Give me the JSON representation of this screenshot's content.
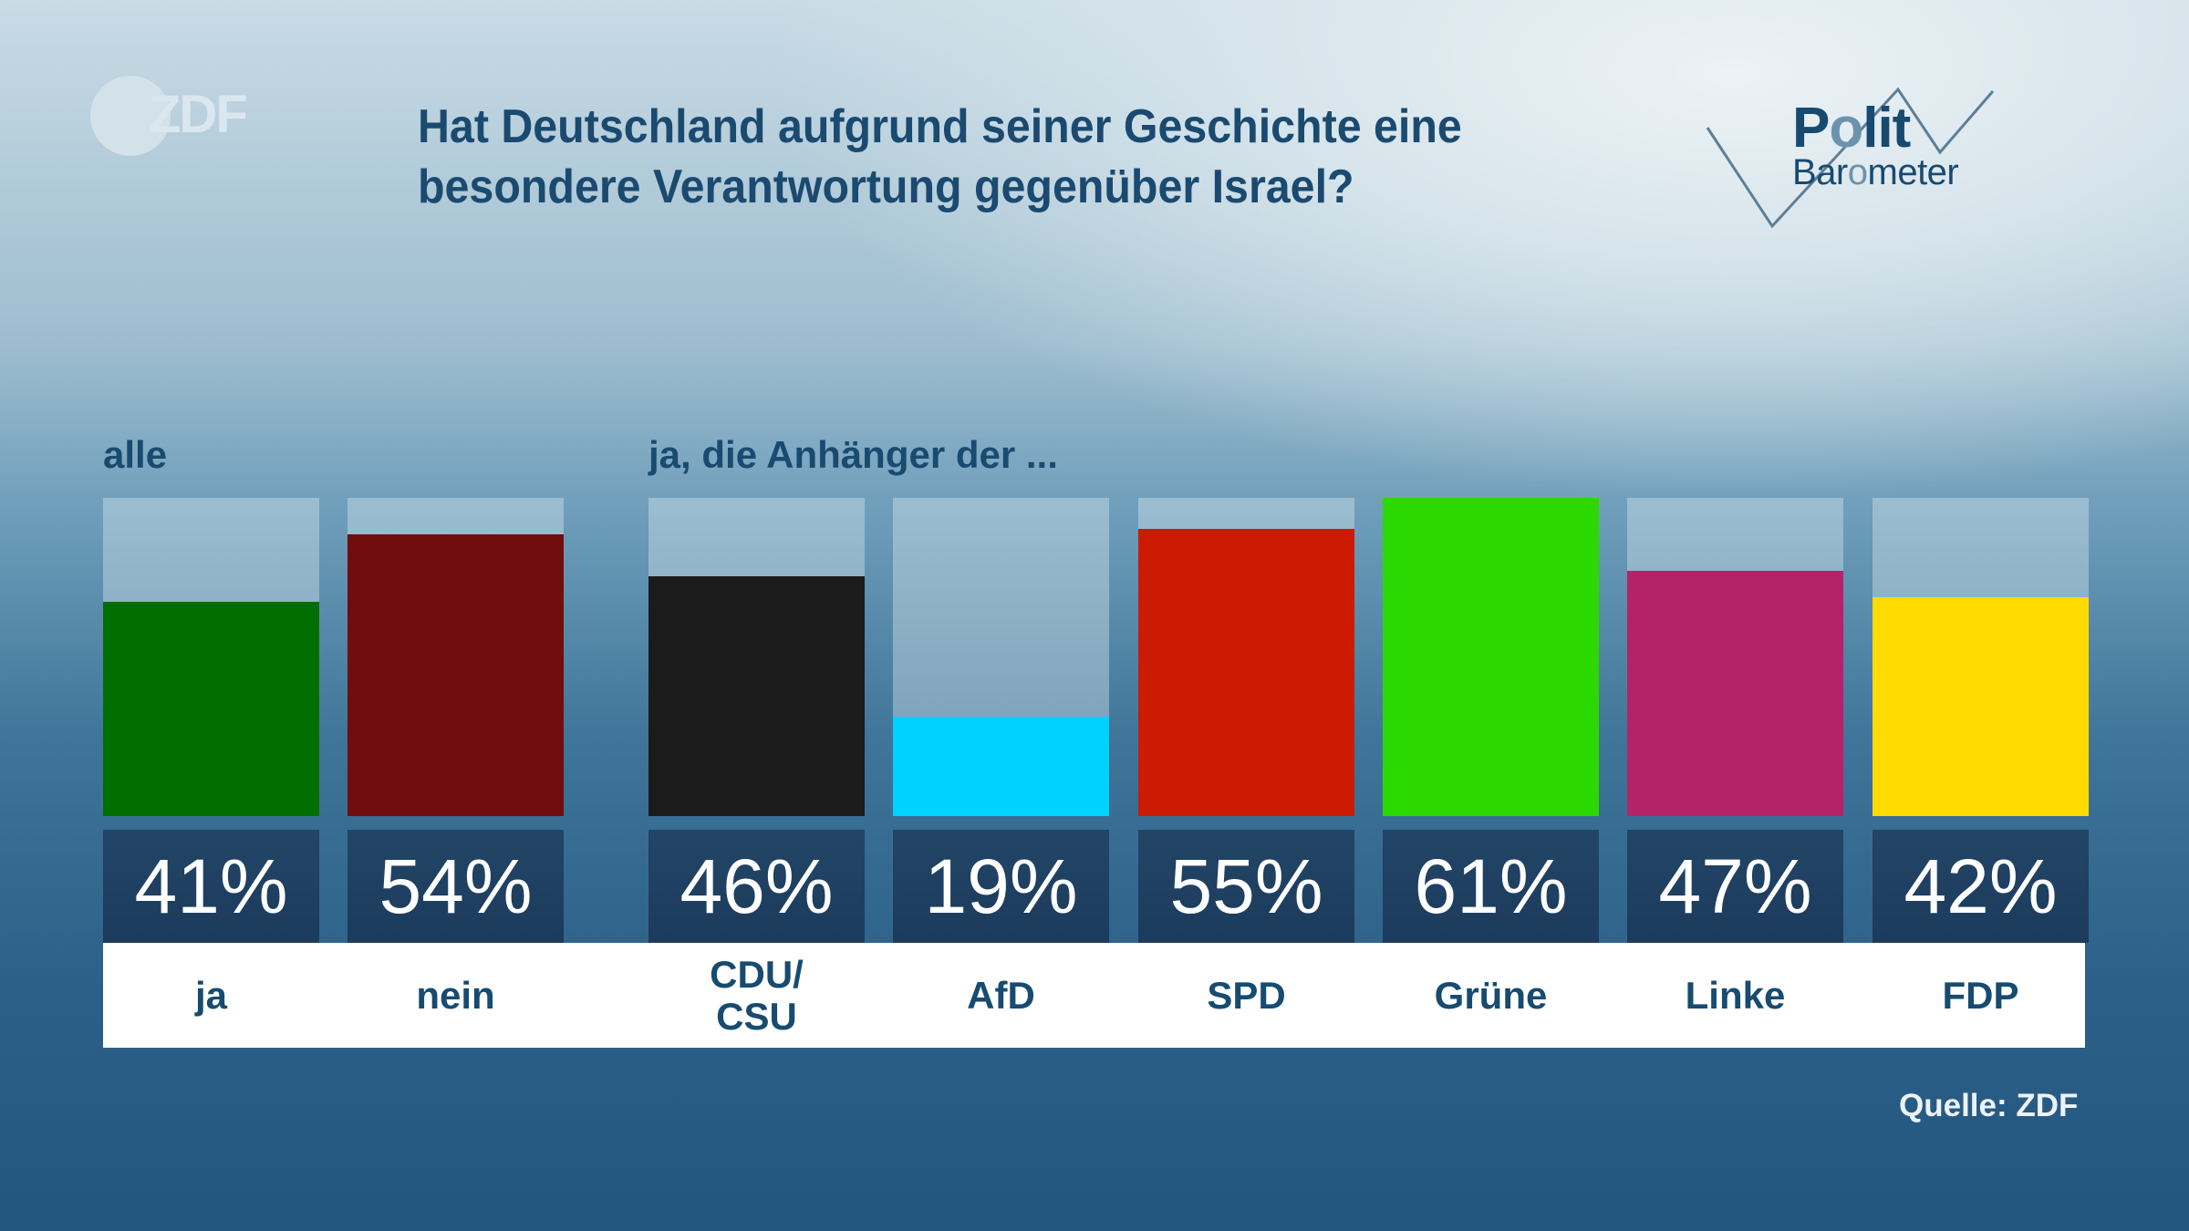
{
  "branding": {
    "broadcaster_logo": "ZDF",
    "program_logo_line1": "Polit",
    "program_logo_line2": "Barometer"
  },
  "title_lines": [
    "Hat Deutschland aufgrund seiner Geschichte eine",
    "besondere Verantwortung gegenüber Israel?"
  ],
  "source": "Quelle: ZDF",
  "chart_data": {
    "type": "bar",
    "title": "Hat Deutschland aufgrund seiner Geschichte eine besondere Verantwortung gegenüber Israel?",
    "unit": "%",
    "scale_max": 61,
    "groups": [
      {
        "label": "alle",
        "bars": [
          {
            "category": "ja",
            "value": 41,
            "display": "41%",
            "color": "#006f00"
          },
          {
            "category": "nein",
            "value": 54,
            "display": "54%",
            "color": "#710d0d"
          }
        ]
      },
      {
        "label": "ja, die Anhänger der ...",
        "bars": [
          {
            "category": "CDU/\nCSU",
            "category_lines": [
              "CDU/",
              "CSU"
            ],
            "value": 46,
            "display": "46%",
            "color": "#1b1b1b"
          },
          {
            "category": "AfD",
            "value": 19,
            "display": "19%",
            "color": "#00d2ff"
          },
          {
            "category": "SPD",
            "value": 55,
            "display": "55%",
            "color": "#cc1b00"
          },
          {
            "category": "Grüne",
            "value": 61,
            "display": "61%",
            "color": "#2bd900"
          },
          {
            "category": "Linke",
            "value": 47,
            "display": "47%",
            "color": "#b42267"
          },
          {
            "category": "FDP",
            "value": 42,
            "display": "42%",
            "color": "#ffdb00"
          }
        ]
      }
    ],
    "categories": [
      "ja",
      "nein",
      "CDU/CSU",
      "AfD",
      "SPD",
      "Grüne",
      "Linke",
      "FDP"
    ],
    "values": [
      41,
      54,
      46,
      19,
      55,
      61,
      47,
      42
    ],
    "xlabel": "",
    "ylabel": "",
    "grid": false
  }
}
